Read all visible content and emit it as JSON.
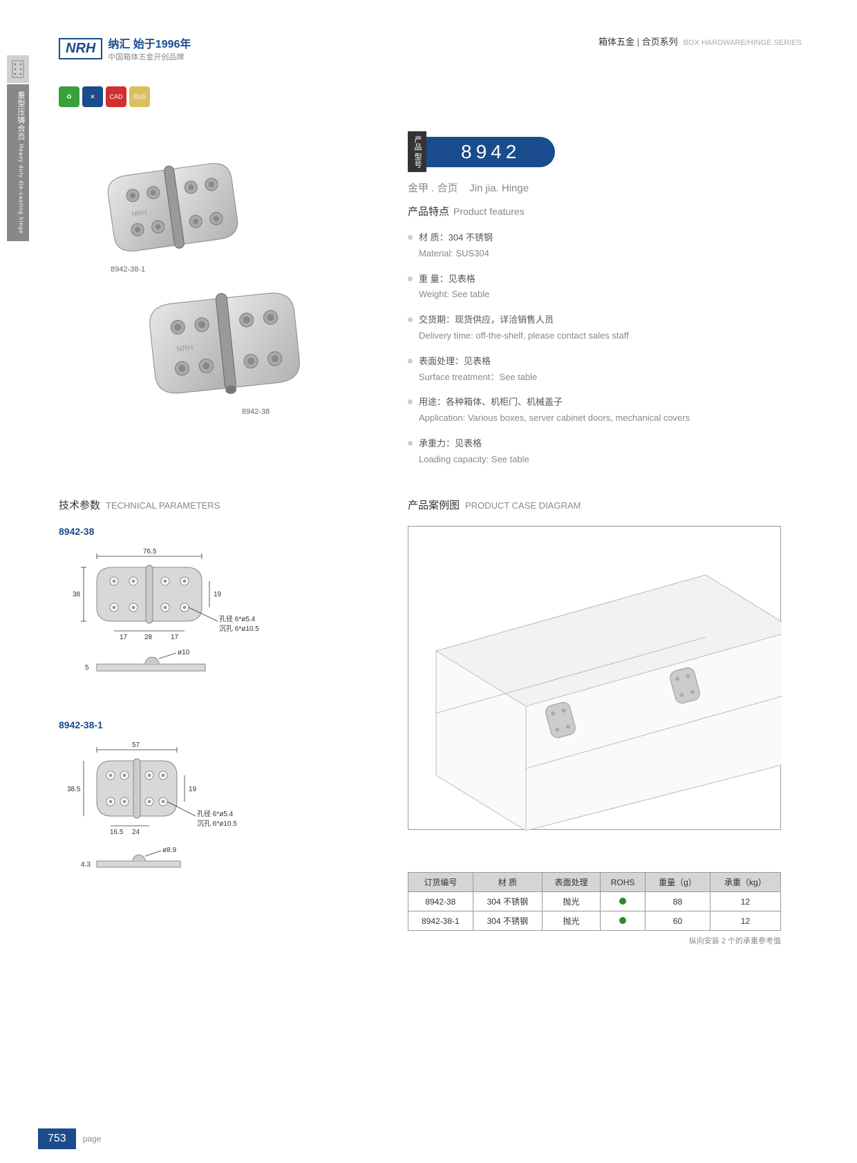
{
  "sideTab": {
    "labelCn": "重型压铸合页",
    "labelEn": "Heavy duty die-casting hinge"
  },
  "header": {
    "logoMark": "NRH",
    "logoLine1": "纳汇 始于1996年",
    "logoLine2": "中国箱体五金开创品牌",
    "rightCn": "箱体五金",
    "rightMid": "合页系列",
    "rightEn": "BOX HARDWARE/HINGE SERIES"
  },
  "badges": [
    {
      "color": "#3aa03a",
      "txt": "♻"
    },
    {
      "color": "#1a4b8c",
      "txt": "✕"
    },
    {
      "color": "#d03030",
      "txt": "CAD"
    },
    {
      "color": "#d8c060",
      "txt": "SUS"
    }
  ],
  "imgLabels": {
    "a": "8942-38-1",
    "b": "8942-38"
  },
  "model": {
    "pre": "产品\n型号",
    "num": "8942",
    "subCn": "金甲 . 合页",
    "subEn": "Jin jia. Hinge"
  },
  "features": {
    "titleCn": "产品特点",
    "titleEn": "Product features",
    "items": [
      {
        "cn": "材 质：304 不锈钢",
        "en": "Material: SUS304"
      },
      {
        "cn": "重 量：见表格",
        "en": "Weight: See table"
      },
      {
        "cn": "交货期：现货供应，详洽销售人员",
        "en": "Delivery time: off-the-shelf, please contact sales staff"
      },
      {
        "cn": "表面处理：见表格",
        "en": "Surface treatment：See table"
      },
      {
        "cn": "用途：各种箱体、机柜门、机械盖子",
        "en": "Application: Various boxes, server cabinet doors, mechanical covers"
      },
      {
        "cn": "承重力：见表格",
        "en": "Loading capacity: See table"
      }
    ]
  },
  "tech": {
    "titleCn": "技术参数",
    "titleEn": "TECHNICAL PARAMETERS",
    "m1": "8942-38",
    "m2": "8942-38-1",
    "d1": {
      "w": "76.5",
      "h": "38",
      "h2": "19",
      "s1": "17",
      "s2": "28",
      "s3": "17",
      "hole": "孔径 6*ø5.4",
      "sink": "沉孔 6*ø10.5",
      "t": "5",
      "pin": "ø10"
    },
    "d2": {
      "w": "57",
      "h": "38.5",
      "h2": "19",
      "s1": "16.5",
      "s2": "24",
      "hole": "孔径 6*ø5.4",
      "sink": "沉孔 6*ø10.5",
      "t": "4.3",
      "pin": "ø8.9"
    }
  },
  "caseDiag": {
    "titleCn": "产品案例图",
    "titleEn": "PRODUCT CASE DIAGRAM"
  },
  "table": {
    "headers": [
      "订货编号",
      "材 质",
      "表面处理",
      "ROHS",
      "重量（g）",
      "承重（kg）"
    ],
    "rows": [
      {
        "code": "8942-38",
        "mat": "304 不锈钢",
        "surf": "抛光",
        "rohs": true,
        "weight": "88",
        "load": "12"
      },
      {
        "code": "8942-38-1",
        "mat": "304 不锈钢",
        "surf": "抛光",
        "rohs": true,
        "weight": "60",
        "load": "12"
      }
    ],
    "note": "纵向安装 2 个的承重参考值"
  },
  "footer": {
    "page": "753",
    "label": "page"
  }
}
